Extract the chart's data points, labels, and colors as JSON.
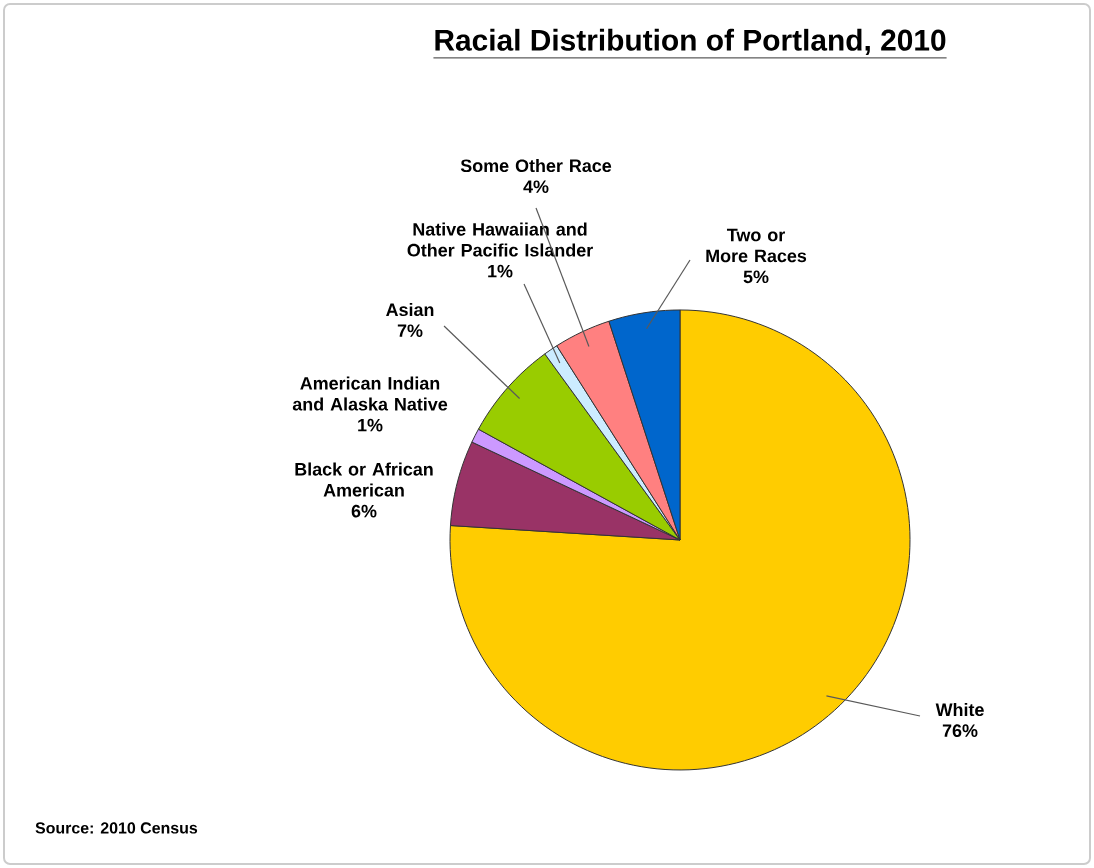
{
  "chart_data": {
    "type": "pie",
    "title": "Racial Distribution of Portland, 2010",
    "categories": [
      "White",
      "Black or African American",
      "American Indian and Alaska Native",
      "Asian",
      "Native Hawaiian and Other Pacific Islander",
      "Some Other Race",
      "Two or More Races"
    ],
    "values": [
      76,
      6,
      1,
      7,
      1,
      4,
      5
    ],
    "value_labels": [
      "76%",
      "6%",
      "1%",
      "7%",
      "1%",
      "4%",
      "5%"
    ],
    "colors": [
      "#ffcc00",
      "#993366",
      "#cc99ff",
      "#99cc00",
      "#ccecff",
      "#ff8080",
      "#0066cc"
    ],
    "annotations": [
      "Source: 2010 Census"
    ]
  }
}
